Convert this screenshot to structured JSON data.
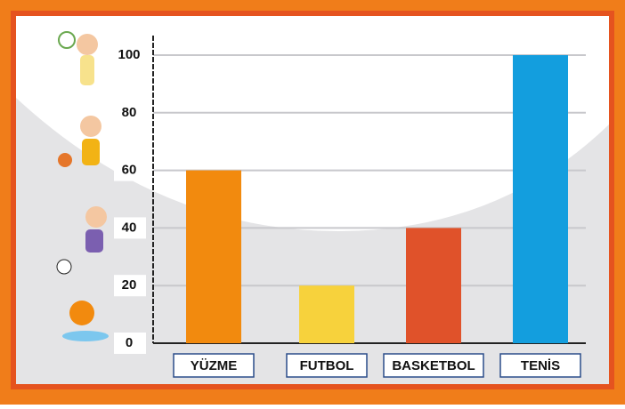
{
  "chart_data": {
    "type": "bar",
    "categories": [
      "YÜZME",
      "FUTBOL",
      "BASKETBOL",
      "TENİS"
    ],
    "values": [
      60,
      20,
      40,
      100
    ],
    "colors": [
      "#f28a0e",
      "#f7d23c",
      "#e0522a",
      "#139ede"
    ],
    "ylim": [
      0,
      100
    ],
    "yticks": [
      0,
      20,
      40,
      60,
      80,
      100
    ],
    "grid": true
  }
}
